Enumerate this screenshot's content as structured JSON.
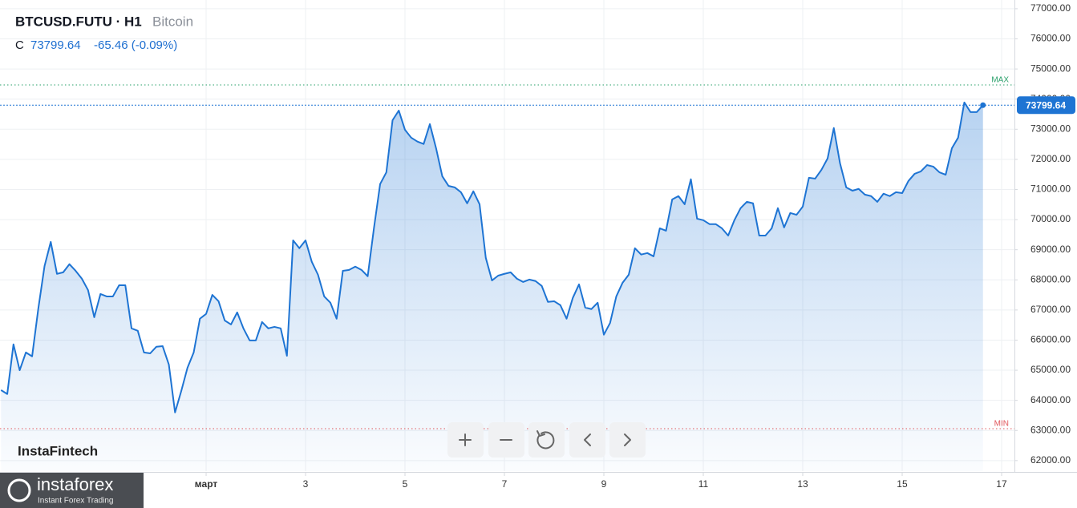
{
  "header": {
    "symbol": "BTCUSD.FUTU · H1",
    "name": "Bitcoin",
    "close_label": "C",
    "change": "-65.46 (-0.09%)"
  },
  "brand": "InstaFintech",
  "logo": {
    "name": "instaforex",
    "tagline": "Instant Forex Trading"
  },
  "chart_data": {
    "type": "line",
    "color": "#1e74d3",
    "grid": true,
    "xlim": [
      -99.5,
      390.2
    ],
    "ylim": [
      61650,
      77290
    ],
    "xticks": [
      {
        "value": 0,
        "label": "март"
      },
      {
        "value": 48,
        "label": "3"
      },
      {
        "value": 96,
        "label": "5"
      },
      {
        "value": 144,
        "label": "7"
      },
      {
        "value": 192,
        "label": "9"
      },
      {
        "value": 240,
        "label": "11"
      },
      {
        "value": 288,
        "label": "13"
      },
      {
        "value": 336,
        "label": "15"
      },
      {
        "value": 384,
        "label": "17"
      }
    ],
    "yticks": [
      {
        "value": 62000,
        "label": "62000.00"
      },
      {
        "value": 63000,
        "label": "63000.00"
      },
      {
        "value": 64000,
        "label": "64000.00"
      },
      {
        "value": 65000,
        "label": "65000.00"
      },
      {
        "value": 66000,
        "label": "66000.00"
      },
      {
        "value": 67000,
        "label": "67000.00"
      },
      {
        "value": 68000,
        "label": "68000.00"
      },
      {
        "value": 69000,
        "label": "69000.00"
      },
      {
        "value": 70000,
        "label": "70000.00"
      },
      {
        "value": 71000,
        "label": "71000.00"
      },
      {
        "value": 72000,
        "label": "72000.00"
      },
      {
        "value": 73000,
        "label": "73000.00"
      },
      {
        "value": 74000,
        "label": "74000.00"
      },
      {
        "value": 75000,
        "label": "75000.00"
      },
      {
        "value": 76000,
        "label": "76000.00"
      },
      {
        "value": 77000,
        "label": "77000.00"
      }
    ],
    "max_line": {
      "label": "MAX",
      "value": 74470,
      "color": "#2aa06a"
    },
    "min_line": {
      "label": "MIN",
      "value": 63060,
      "color": "#e0575b"
    },
    "x": [
      -99,
      -96,
      -93,
      -90,
      -87,
      -84,
      -81,
      -78,
      -75,
      -72,
      -69,
      -66,
      -63,
      -60,
      -57,
      -54,
      -51,
      -48,
      -45,
      -42,
      -39,
      -36,
      -33,
      -30,
      -27,
      -24,
      -21,
      -18,
      -15,
      -12,
      -9,
      -6,
      -3,
      0,
      3,
      6,
      9,
      12,
      15,
      18,
      21,
      24,
      27,
      30,
      33,
      36,
      39,
      42,
      45,
      48,
      51,
      54,
      57,
      60,
      63,
      66,
      69,
      72,
      75,
      78,
      81,
      84,
      87,
      90,
      93,
      96,
      99,
      102,
      105,
      108,
      111,
      114,
      117,
      120,
      123,
      126,
      129,
      132,
      135,
      138,
      141,
      144,
      147,
      150,
      153,
      156,
      159,
      162,
      165,
      168,
      171,
      174,
      177,
      180,
      183,
      186,
      189,
      192,
      195,
      198,
      201,
      204,
      207,
      210,
      213,
      216,
      219,
      222,
      225,
      228,
      231,
      234,
      237,
      240,
      243,
      246,
      249,
      252,
      255,
      258,
      261,
      264,
      267,
      270,
      273,
      276,
      279,
      282,
      285,
      288,
      291,
      294,
      297,
      300,
      303,
      306,
      309,
      312,
      315,
      318,
      321,
      324,
      327,
      330,
      333,
      336,
      339,
      342,
      345,
      348,
      351,
      354,
      357,
      360,
      363,
      366,
      369,
      372,
      375
    ],
    "values": [
      64340,
      64210,
      65860,
      65000,
      65590,
      65460,
      67050,
      68460,
      69260,
      68200,
      68250,
      68520,
      68300,
      68040,
      67660,
      66760,
      67530,
      67450,
      67450,
      67820,
      67820,
      66390,
      66310,
      65590,
      65560,
      65780,
      65800,
      65190,
      63600,
      64310,
      65080,
      65590,
      66710,
      66870,
      67500,
      67290,
      66650,
      66520,
      66920,
      66390,
      65990,
      65990,
      66600,
      66390,
      66440,
      66390,
      65480,
      69310,
      69050,
      69310,
      68600,
      68170,
      67450,
      67240,
      66710,
      68300,
      68330,
      68440,
      68330,
      68120,
      69710,
      71180,
      71570,
      73300,
      73620,
      72980,
      72720,
      72590,
      72510,
      73170,
      72370,
      71440,
      71120,
      71070,
      70910,
      70540,
      70940,
      70510,
      68730,
      67980,
      68140,
      68200,
      68250,
      68040,
      67930,
      68010,
      67960,
      67800,
      67270,
      67290,
      67160,
      66710,
      67400,
      67850,
      67080,
      67030,
      67240,
      66180,
      66570,
      67450,
      67900,
      68170,
      69050,
      68840,
      68890,
      68780,
      69710,
      69630,
      70670,
      70780,
      70510,
      71340,
      70030,
      69980,
      69850,
      69850,
      69710,
      69470,
      69980,
      70380,
      70590,
      70540,
      69470,
      69470,
      69710,
      70380,
      69740,
      70220,
      70160,
      70430,
      71390,
      71360,
      71650,
      72030,
      73040,
      71870,
      71070,
      70960,
      71020,
      70830,
      70780,
      70590,
      70860,
      70780,
      70910,
      70880,
      71280,
      71520,
      71600,
      71810,
      71760,
      71570,
      71490,
      72370,
      72720,
      73890,
      73570,
      73570,
      73799.64
    ]
  }
}
